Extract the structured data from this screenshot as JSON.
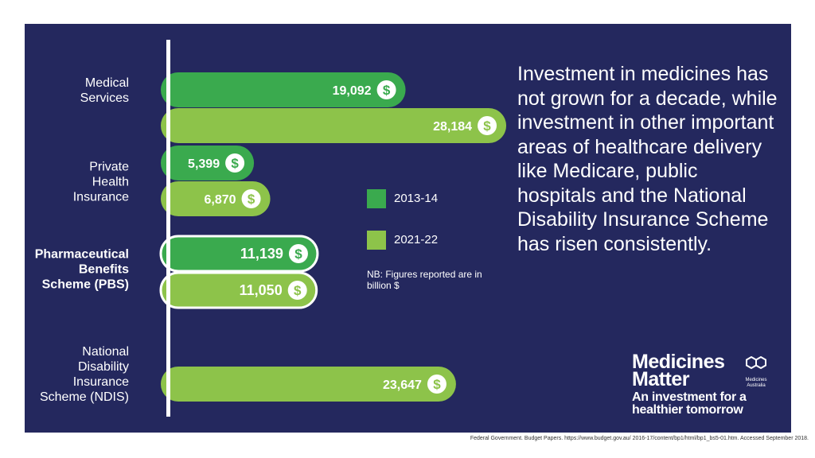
{
  "chart_data": {
    "type": "bar",
    "orientation": "horizontal",
    "categories": [
      "Medical\nServices",
      "Private\nHealth\nInsurance",
      "Pharmaceutical\nBenefits\nScheme (PBS)",
      "National\nDisability\nInsurance\nScheme (NDIS)"
    ],
    "highlight_category": 2,
    "series": [
      {
        "name": "2013-14",
        "color": "#3aaa4e",
        "values": [
          19092,
          5399,
          11139,
          null
        ]
      },
      {
        "name": "2021-22",
        "color": "#8dc34a",
        "values": [
          28184,
          6870,
          11050,
          23647
        ]
      }
    ],
    "value_labels": [
      [
        "19,092",
        "5,399",
        "11,139",
        null
      ],
      [
        "28,184",
        "6,870",
        "11,050",
        "23,647"
      ]
    ],
    "value_icon": "dollar-icon",
    "value_icon_glyph": "$",
    "legend_placement": "center",
    "grid": false
  },
  "note": "NB: Figures reported are in billion $",
  "headline": "Investment in medicines has not grown for a decade, while investment in other important areas of healthcare delivery like Medicare, public hospitals and the National Disability Insurance Scheme has risen consistently.",
  "logo": {
    "title": "Medicines\nMatter",
    "mark_icon": "medicines-australia-logo-icon",
    "mark_text": "Medicines\nAustralia",
    "tagline": "An investment for a\nhealthier tomorrow"
  },
  "source": "Federal Government. Budget Papers. https://www.budget.gov.au/ 2016-17/content/bp1/html/bp1_bs5-01.htm. Accessed September 2018.",
  "colors": {
    "background": "#24285e",
    "text": "#ffffff",
    "axis": "#ffffff",
    "highlight_outline": "#ffffff"
  }
}
